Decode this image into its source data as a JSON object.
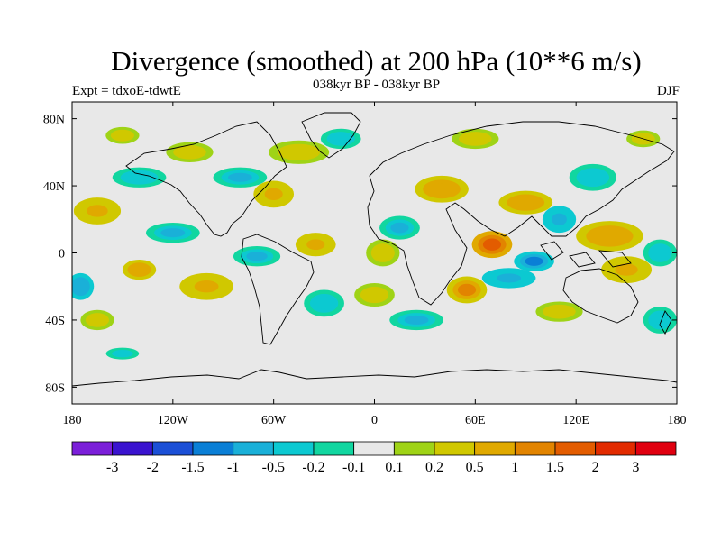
{
  "title": "Divergence (smoothed) at 200 hPa (10**6 m/s)",
  "subtitle": "038kyr BP - 038kyr BP",
  "left_label": "Expt = tdxoE-tdwtE",
  "right_label": "DJF",
  "chart_data": {
    "type": "heatmap",
    "variable": "Divergence (smoothed) at 200 hPa",
    "units": "10**6 m/s",
    "x_range": [
      -180,
      180
    ],
    "y_range": [
      -90,
      90
    ],
    "x_ticks": [
      {
        "value": -180,
        "label": "180"
      },
      {
        "value": -120,
        "label": "120W"
      },
      {
        "value": -60,
        "label": "60W"
      },
      {
        "value": 0,
        "label": "0"
      },
      {
        "value": 60,
        "label": "60E"
      },
      {
        "value": 120,
        "label": "120E"
      },
      {
        "value": 180,
        "label": "180"
      }
    ],
    "y_ticks": [
      {
        "value": 80,
        "label": "80N"
      },
      {
        "value": 40,
        "label": "40N"
      },
      {
        "value": 0,
        "label": "0"
      },
      {
        "value": -40,
        "label": "40S"
      },
      {
        "value": -80,
        "label": "80S"
      }
    ],
    "colorbar": {
      "colors": [
        "#7b1fd9",
        "#3a13cf",
        "#1b4fd6",
        "#0a7fd6",
        "#1ab0d8",
        "#0cc9d1",
        "#11d6a0",
        "#e8e8e8",
        "#9fd316",
        "#d0c800",
        "#e0a900",
        "#e28400",
        "#e35c00",
        "#e22b00",
        "#e00010"
      ],
      "levels": [
        "-3",
        "-2",
        "-1.5",
        "-1",
        "-0.5",
        "-0.2",
        "-0.1",
        "0.1",
        "0.2",
        "0.5",
        "1",
        "1.5",
        "2",
        "3"
      ]
    },
    "features": [
      {
        "lon": 70,
        "lat": 5,
        "value": 2.0,
        "rx": 12,
        "ry": 8
      },
      {
        "lon": 55,
        "lat": -22,
        "value": 1.2,
        "rx": 12,
        "ry": 8
      },
      {
        "lon": 90,
        "lat": 30,
        "value": 1.0,
        "rx": 16,
        "ry": 7
      },
      {
        "lon": 140,
        "lat": 10,
        "value": 1.0,
        "rx": 20,
        "ry": 9
      },
      {
        "lon": 150,
        "lat": -10,
        "value": 0.7,
        "rx": 15,
        "ry": 8
      },
      {
        "lon": -165,
        "lat": 25,
        "value": 0.6,
        "rx": 14,
        "ry": 8
      },
      {
        "lon": 40,
        "lat": 38,
        "value": 0.8,
        "rx": 16,
        "ry": 8
      },
      {
        "lon": -140,
        "lat": -10,
        "value": 0.8,
        "rx": 10,
        "ry": 6
      },
      {
        "lon": -100,
        "lat": -20,
        "value": 0.6,
        "rx": 16,
        "ry": 8
      },
      {
        "lon": -60,
        "lat": 35,
        "value": 0.6,
        "rx": 12,
        "ry": 8
      },
      {
        "lon": -35,
        "lat": 5,
        "value": 0.6,
        "rx": 12,
        "ry": 7
      },
      {
        "lon": 5,
        "lat": 0,
        "value": 0.5,
        "rx": 10,
        "ry": 8
      },
      {
        "lon": -165,
        "lat": -40,
        "value": 0.4,
        "rx": 10,
        "ry": 6
      },
      {
        "lon": -45,
        "lat": 60,
        "value": 0.3,
        "rx": 18,
        "ry": 7
      },
      {
        "lon": 0,
        "lat": -25,
        "value": 0.4,
        "rx": 12,
        "ry": 7
      },
      {
        "lon": 110,
        "lat": -35,
        "value": 0.4,
        "rx": 14,
        "ry": 6
      },
      {
        "lon": -110,
        "lat": 60,
        "value": 0.3,
        "rx": 14,
        "ry": 6
      },
      {
        "lon": 60,
        "lat": 68,
        "value": 0.3,
        "rx": 14,
        "ry": 6
      },
      {
        "lon": 95,
        "lat": -5,
        "value": -1.0,
        "rx": 12,
        "ry": 6
      },
      {
        "lon": 110,
        "lat": 20,
        "value": -0.6,
        "rx": 10,
        "ry": 8
      },
      {
        "lon": 15,
        "lat": 15,
        "value": -0.5,
        "rx": 12,
        "ry": 7
      },
      {
        "lon": -175,
        "lat": -20,
        "value": -0.8,
        "rx": 8,
        "ry": 8
      },
      {
        "lon": -120,
        "lat": 12,
        "value": -0.5,
        "rx": 16,
        "ry": 6
      },
      {
        "lon": -70,
        "lat": -2,
        "value": -0.5,
        "rx": 14,
        "ry": 6
      },
      {
        "lon": -80,
        "lat": 45,
        "value": -0.5,
        "rx": 16,
        "ry": 6
      },
      {
        "lon": 25,
        "lat": -40,
        "value": -0.5,
        "rx": 16,
        "ry": 6
      },
      {
        "lon": 130,
        "lat": 45,
        "value": -0.4,
        "rx": 14,
        "ry": 8
      },
      {
        "lon": -140,
        "lat": 45,
        "value": -0.4,
        "rx": 16,
        "ry": 6
      },
      {
        "lon": 170,
        "lat": 0,
        "value": -0.4,
        "rx": 10,
        "ry": 8
      },
      {
        "lon": 80,
        "lat": -15,
        "value": -0.6,
        "rx": 16,
        "ry": 6
      },
      {
        "lon": -30,
        "lat": -30,
        "value": -0.3,
        "rx": 12,
        "ry": 8
      },
      {
        "lon": 170,
        "lat": -40,
        "value": -0.4,
        "rx": 10,
        "ry": 8
      },
      {
        "lon": -150,
        "lat": -60,
        "value": -0.2,
        "rx": 14,
        "ry": 5
      },
      {
        "lon": -20,
        "lat": 68,
        "value": -0.3,
        "rx": 12,
        "ry": 6
      },
      {
        "lon": -150,
        "lat": 70,
        "value": 0.3,
        "rx": 10,
        "ry": 5
      },
      {
        "lon": 160,
        "lat": 68,
        "value": 0.3,
        "rx": 10,
        "ry": 5
      }
    ]
  }
}
